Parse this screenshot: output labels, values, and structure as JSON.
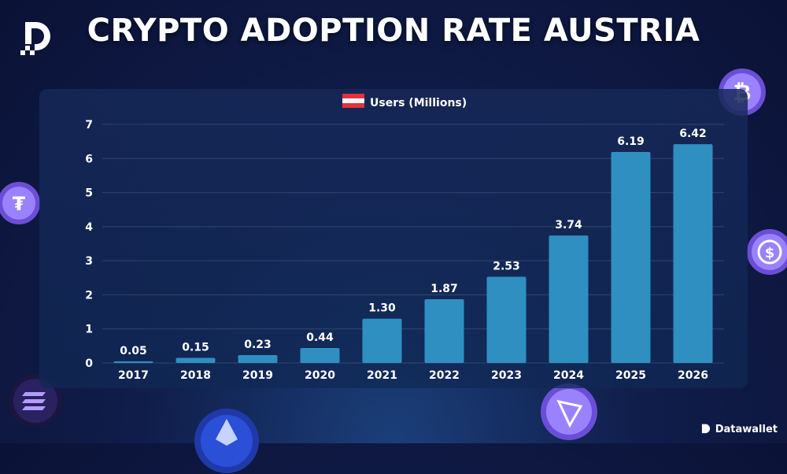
{
  "page_title": "CRYPTO ADOPTION RATE AUSTRIA",
  "brand": {
    "name": "Datawallet"
  },
  "icons": {
    "logo": "datawallet-logo-icon",
    "legend_flag": "austria-flag-icon",
    "coins": [
      "bitcoin-coin-icon",
      "tether-coin-icon",
      "usd-coin-icon",
      "solana-coin-icon",
      "ethereum-coin-icon",
      "tron-coin-icon"
    ]
  },
  "colors": {
    "bar": "#2f8fc1",
    "accent": "#8a6cff",
    "flag_red": "#e8303a",
    "text": "#ffffff"
  },
  "chart_data": {
    "type": "bar",
    "title": "",
    "xlabel": "",
    "ylabel": "",
    "categories": [
      "2017",
      "2018",
      "2019",
      "2020",
      "2021",
      "2022",
      "2023",
      "2024",
      "2025",
      "2026"
    ],
    "series": [
      {
        "name": "Users (Millions)",
        "values": [
          0.05,
          0.15,
          0.23,
          0.44,
          1.3,
          1.87,
          2.53,
          3.74,
          6.19,
          6.42
        ],
        "labels": [
          "0.05",
          "0.15",
          "0.23",
          "0.44",
          "1.30",
          "1.87",
          "2.53",
          "3.74",
          "6.19",
          "6.42"
        ]
      }
    ],
    "ylim": [
      0,
      7
    ],
    "yticks": [
      "0",
      "1",
      "2",
      "3",
      "4",
      "5",
      "6",
      "7"
    ],
    "grid": true,
    "legend_position": "top-center"
  }
}
